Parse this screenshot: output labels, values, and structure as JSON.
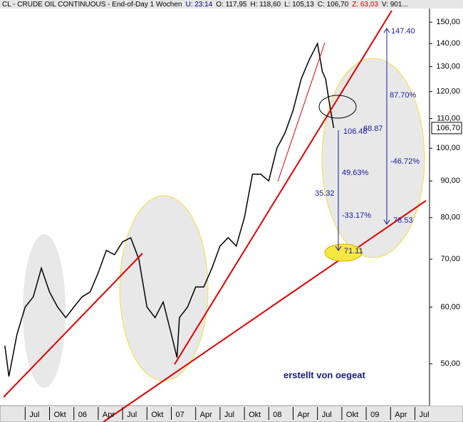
{
  "chart_data": {
    "type": "line",
    "header": [
      {
        "text": "CL - CRUDE OIL CONTINUOUS - End-of-Day 1 Wochen",
        "color": "#000000"
      },
      {
        "text": "U: 23:14",
        "color": "#000080"
      },
      {
        "text": "O: 117,95",
        "color": "#000000"
      },
      {
        "text": "H: 118,60",
        "color": "#000000"
      },
      {
        "text": "L: 105,13",
        "color": "#000000"
      },
      {
        "text": "C: 106,70",
        "color": "#000000"
      },
      {
        "text": "Z: 63,03",
        "color": "#cc0000"
      },
      {
        "text": "V: 901...",
        "color": "#000000"
      }
    ],
    "log_scale": true,
    "color": "#000000",
    "x": [
      3.5,
      4,
      5,
      6,
      7,
      8,
      9,
      10,
      11,
      12,
      13,
      14,
      15,
      16,
      17,
      18,
      19,
      20,
      21,
      22,
      23,
      24,
      24.7,
      25,
      26,
      27,
      28,
      29,
      30,
      31,
      32,
      33,
      34,
      35,
      36,
      37,
      38,
      39,
      40,
      41,
      42,
      42.6,
      43,
      43.5,
      44
    ],
    "values": [
      53,
      48,
      55,
      60,
      62,
      68,
      63,
      60,
      58,
      60,
      62,
      63,
      67,
      72,
      71,
      74,
      75,
      70,
      60,
      58,
      61,
      55,
      51,
      58,
      60,
      64,
      64,
      68,
      73,
      75,
      73,
      80,
      92,
      92,
      90,
      100,
      105,
      113,
      125,
      133,
      140,
      128,
      125,
      115,
      106.7
    ],
    "xlim": [
      2.9,
      55.8
    ],
    "xticks": [
      {
        "value": 6,
        "label": "Jul"
      },
      {
        "value": 9,
        "label": "Okt"
      },
      {
        "value": 12,
        "label": "06"
      },
      {
        "value": 15,
        "label": "Apr"
      },
      {
        "value": 18,
        "label": "Jul"
      },
      {
        "value": 21,
        "label": "Okt"
      },
      {
        "value": 24,
        "label": "07"
      },
      {
        "value": 27,
        "label": "Apr"
      },
      {
        "value": 30,
        "label": "Jul"
      },
      {
        "value": 33,
        "label": "Okt"
      },
      {
        "value": 36,
        "label": "08"
      },
      {
        "value": 39,
        "label": "Apr"
      },
      {
        "value": 42,
        "label": "Jul"
      },
      {
        "value": 45,
        "label": "Okt"
      },
      {
        "value": 48,
        "label": "09"
      },
      {
        "value": 51,
        "label": "Apr"
      },
      {
        "value": 54,
        "label": "Jul"
      }
    ],
    "ylim": [
      43.7,
      156.7
    ],
    "yticks": [
      {
        "value": 50,
        "label": "50,00"
      },
      {
        "value": 60,
        "label": "60,00"
      },
      {
        "value": 70,
        "label": "70,00"
      },
      {
        "value": 80,
        "label": "80,00"
      },
      {
        "value": 90,
        "label": "90,00"
      },
      {
        "value": 100,
        "label": "100,00"
      },
      {
        "value": 110,
        "label": "110,00"
      },
      {
        "value": 120,
        "label": "120,00"
      },
      {
        "value": 130,
        "label": "130,00"
      },
      {
        "value": 140,
        "label": "140,00"
      },
      {
        "value": 150,
        "label": "150,00"
      }
    ],
    "last_value": {
      "value": 106.7,
      "label": "106,70"
    },
    "annotations": [
      "147.40",
      "106.48",
      "68.87",
      "87.70%",
      "-46.72%",
      "49.63%",
      "35.32",
      "-33.17%",
      "78.53",
      "71.11",
      "erstellt von oegeat"
    ]
  }
}
